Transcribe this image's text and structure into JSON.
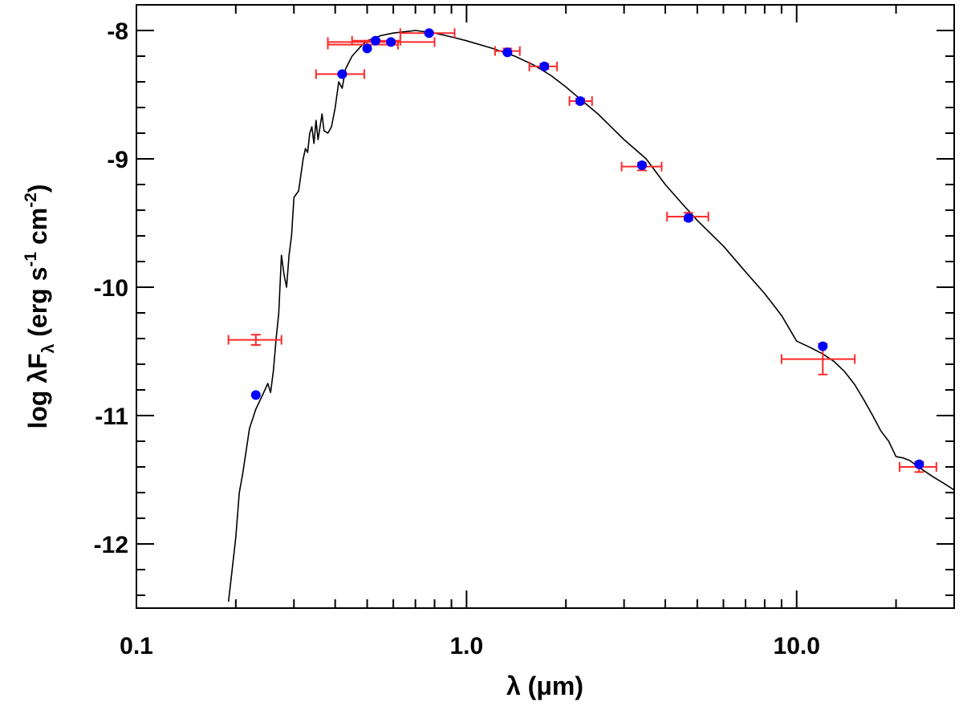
{
  "chart_data": {
    "type": "scatter",
    "title": "",
    "xlabel": "λ (μm)",
    "ylabel": {
      "main": "log λF",
      "main_sub": "λ",
      "unit_open": " (erg s",
      "unit_exp1": "-1",
      "unit_mid": " cm",
      "unit_exp2": "-2",
      "unit_close": ")"
    },
    "xscale": "log",
    "xlim": [
      0.1,
      30
    ],
    "ylim": [
      -12.5,
      -7.8
    ],
    "x_ticks": [
      {
        "value": 0.1,
        "label": "0.1"
      },
      {
        "value": 1.0,
        "label": "1.0"
      },
      {
        "value": 10.0,
        "label": "10.0"
      }
    ],
    "y_ticks": [
      {
        "value": -8,
        "label": "-8"
      },
      {
        "value": -9,
        "label": "-9"
      },
      {
        "value": -10,
        "label": "-10"
      },
      {
        "value": -11,
        "label": "-11"
      },
      {
        "value": -12,
        "label": "-12"
      }
    ],
    "colors": {
      "model": "#000000",
      "model_points": "#0000ff",
      "observed": "#ff2a2a"
    },
    "series": [
      {
        "name": "Model SED",
        "kind": "line",
        "x": [
          0.19,
          0.195,
          0.2,
          0.205,
          0.21,
          0.22,
          0.23,
          0.24,
          0.245,
          0.25,
          0.255,
          0.26,
          0.265,
          0.27,
          0.275,
          0.28,
          0.285,
          0.29,
          0.295,
          0.3,
          0.31,
          0.32,
          0.325,
          0.33,
          0.335,
          0.34,
          0.345,
          0.35,
          0.355,
          0.36,
          0.365,
          0.37,
          0.38,
          0.39,
          0.4,
          0.41,
          0.42,
          0.43,
          0.45,
          0.48,
          0.5,
          0.55,
          0.6,
          0.65,
          0.7,
          0.8,
          0.9,
          1.0,
          1.2,
          1.4,
          1.6,
          1.8,
          2.0,
          2.2,
          2.5,
          3.0,
          3.5,
          4.0,
          4.5,
          5.0,
          6.0,
          7.0,
          8.0,
          9.0,
          10.0,
          11.0,
          12.0,
          13.0,
          14.0,
          15.0,
          16.0,
          17.0,
          18.0,
          19.0,
          20.0,
          21.0,
          22.0,
          24.0,
          26.0,
          28.0,
          30.0
        ],
        "y": [
          -12.45,
          -12.2,
          -11.95,
          -11.6,
          -11.45,
          -11.1,
          -10.95,
          -10.85,
          -10.8,
          -10.75,
          -10.82,
          -10.65,
          -10.4,
          -10.2,
          -9.75,
          -9.9,
          -10.0,
          -9.75,
          -9.6,
          -9.3,
          -9.25,
          -9.0,
          -8.92,
          -8.95,
          -8.8,
          -8.75,
          -8.88,
          -8.7,
          -8.85,
          -8.75,
          -8.65,
          -8.78,
          -8.8,
          -8.75,
          -8.6,
          -8.4,
          -8.45,
          -8.3,
          -8.2,
          -8.12,
          -8.08,
          -8.04,
          -8.02,
          -8.01,
          -8.0,
          -8.02,
          -8.05,
          -8.08,
          -8.14,
          -8.2,
          -8.27,
          -8.35,
          -8.44,
          -8.53,
          -8.65,
          -8.85,
          -9.0,
          -9.2,
          -9.35,
          -9.48,
          -9.68,
          -9.88,
          -10.05,
          -10.22,
          -10.42,
          -10.47,
          -10.52,
          -10.58,
          -10.66,
          -10.76,
          -10.88,
          -11.0,
          -11.12,
          -11.2,
          -11.32,
          -11.33,
          -11.35,
          -11.42,
          -11.48,
          -11.53,
          -11.58
        ]
      },
      {
        "name": "Model photometry",
        "kind": "points",
        "x": [
          0.23,
          0.42,
          0.5,
          0.53,
          0.59,
          0.77,
          1.33,
          1.72,
          2.21,
          3.4,
          4.7,
          12.0,
          23.5
        ],
        "y": [
          -10.84,
          -8.34,
          -8.14,
          -8.08,
          -8.09,
          -8.02,
          -8.17,
          -8.28,
          -8.55,
          -9.05,
          -9.46,
          -10.46,
          -11.38
        ]
      },
      {
        "name": "Observed fluxes",
        "kind": "errorbar",
        "points": [
          {
            "x": 0.23,
            "y": -10.41,
            "xerr": [
              0.19,
              0.275
            ],
            "yerr": 0.04
          },
          {
            "x": 0.42,
            "y": -8.34,
            "xerr": [
              0.35,
              0.49
            ],
            "yerr": 0.01
          },
          {
            "x": 0.5,
            "y": -8.11,
            "xerr": [
              0.38,
              0.62
            ],
            "yerr": 0.03
          },
          {
            "x": 0.53,
            "y": -8.08,
            "xerr": [
              0.45,
              0.63
            ],
            "yerr": 0.01
          },
          {
            "x": 0.59,
            "y": -8.09,
            "xerr": [
              0.38,
              0.8
            ],
            "yerr": 0.01
          },
          {
            "x": 0.77,
            "y": -8.02,
            "xerr": [
              0.63,
              0.92
            ],
            "yerr": 0.01
          },
          {
            "x": 1.33,
            "y": -8.16,
            "xerr": [
              1.22,
              1.45
            ],
            "yerr": 0.02
          },
          {
            "x": 1.72,
            "y": -8.28,
            "xerr": [
              1.55,
              1.88
            ],
            "yerr": 0.02
          },
          {
            "x": 2.21,
            "y": -8.55,
            "xerr": [
              2.05,
              2.4
            ],
            "yerr": 0.02
          },
          {
            "x": 3.4,
            "y": -9.06,
            "xerr": [
              2.95,
              3.9
            ],
            "yerr": 0.03
          },
          {
            "x": 4.7,
            "y": -9.45,
            "xerr": [
              4.05,
              5.4
            ],
            "yerr": 0.03
          },
          {
            "x": 12.0,
            "y": -10.56,
            "xerr": [
              9.0,
              15.0
            ],
            "yerr": 0.12
          },
          {
            "x": 23.5,
            "y": -11.4,
            "xerr": [
              20.5,
              26.5
            ],
            "yerr": 0.04
          }
        ]
      }
    ]
  }
}
